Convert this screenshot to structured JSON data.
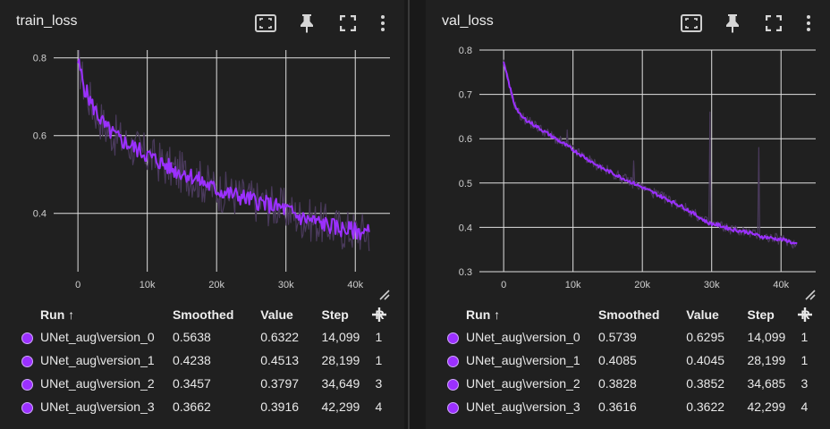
{
  "accent_color": "#9b30ff",
  "toolbar_icons": [
    "fit-domain-icon",
    "pin-icon",
    "fullscreen-icon",
    "more-vert-icon"
  ],
  "table_headers": {
    "run": "Run ↑",
    "smoothed": "Smoothed",
    "value": "Value",
    "step": "Step",
    "relative": "R"
  },
  "panels": [
    {
      "title": "train_loss",
      "rows": [
        {
          "run": "UNet_aug\\version_0",
          "smoothed": "0.5638",
          "value": "0.6322",
          "step": "14,099",
          "relative": "1"
        },
        {
          "run": "UNet_aug\\version_1",
          "smoothed": "0.4238",
          "value": "0.4513",
          "step": "28,199",
          "relative": "1"
        },
        {
          "run": "UNet_aug\\version_2",
          "smoothed": "0.3457",
          "value": "0.3797",
          "step": "34,649",
          "relative": "3"
        },
        {
          "run": "UNet_aug\\version_3",
          "smoothed": "0.3662",
          "value": "0.3916",
          "step": "42,299",
          "relative": "4"
        }
      ]
    },
    {
      "title": "val_loss",
      "rows": [
        {
          "run": "UNet_aug\\version_0",
          "smoothed": "0.5739",
          "value": "0.6295",
          "step": "14,099",
          "relative": "1"
        },
        {
          "run": "UNet_aug\\version_1",
          "smoothed": "0.4085",
          "value": "0.4045",
          "step": "28,199",
          "relative": "1"
        },
        {
          "run": "UNet_aug\\version_2",
          "smoothed": "0.3828",
          "value": "0.3852",
          "step": "34,685",
          "relative": "3"
        },
        {
          "run": "UNet_aug\\version_3",
          "smoothed": "0.3616",
          "value": "0.3622",
          "step": "42,299",
          "relative": "4"
        }
      ]
    }
  ],
  "chart_data": [
    {
      "type": "line",
      "title": "train_loss",
      "xlim": [
        -3500,
        45000
      ],
      "ylim": [
        0.25,
        0.82
      ],
      "x_ticks": [
        0,
        10000,
        20000,
        30000,
        40000
      ],
      "x_tick_labels": [
        "0",
        "10k",
        "20k",
        "30k",
        "40k"
      ],
      "y_ticks": [
        0.4,
        0.6,
        0.8
      ],
      "y_tick_labels": [
        "0.4",
        "0.6",
        "0.8"
      ],
      "grid": true,
      "raw_color": "#4a3a5c",
      "smoothed_color": "#9b30ff",
      "series": [
        {
          "x": [
            0,
            1000,
            2000,
            3000,
            4000,
            6000,
            8000,
            10000,
            12000,
            14000,
            16000,
            18000,
            20000,
            22000,
            24000,
            26000,
            28000,
            30000,
            32000,
            34000,
            36000,
            38000,
            40000,
            42000
          ],
          "y": [
            0.79,
            0.72,
            0.68,
            0.65,
            0.62,
            0.59,
            0.57,
            0.55,
            0.53,
            0.51,
            0.5,
            0.48,
            0.46,
            0.45,
            0.44,
            0.43,
            0.42,
            0.41,
            0.39,
            0.38,
            0.37,
            0.36,
            0.355,
            0.35
          ]
        }
      ]
    },
    {
      "type": "line",
      "title": "val_loss",
      "xlim": [
        -3500,
        45000
      ],
      "ylim": [
        0.3,
        0.8
      ],
      "x_ticks": [
        0,
        10000,
        20000,
        30000,
        40000
      ],
      "x_tick_labels": [
        "0",
        "10k",
        "20k",
        "30k",
        "40k"
      ],
      "y_ticks": [
        0.3,
        0.4,
        0.5,
        0.6,
        0.7,
        0.8
      ],
      "y_tick_labels": [
        "0.3",
        "0.4",
        "0.5",
        "0.6",
        "0.7",
        "0.8"
      ],
      "grid": true,
      "raw_color": "#4a3a5c",
      "smoothed_color": "#9b30ff",
      "series": [
        {
          "x": [
            0,
            500,
            1500,
            2500,
            4000,
            6000,
            8000,
            10000,
            12000,
            14000,
            16000,
            18000,
            20000,
            22000,
            24000,
            26000,
            28000,
            29500,
            31000,
            33000,
            35000,
            37000,
            39000,
            41000,
            42300
          ],
          "y": [
            0.77,
            0.74,
            0.68,
            0.65,
            0.635,
            0.615,
            0.595,
            0.575,
            0.555,
            0.535,
            0.52,
            0.505,
            0.49,
            0.475,
            0.46,
            0.445,
            0.425,
            0.41,
            0.405,
            0.395,
            0.39,
            0.38,
            0.375,
            0.37,
            0.36
          ]
        }
      ],
      "raw_spikes": [
        {
          "x": 29700,
          "y": 0.66
        },
        {
          "x": 36800,
          "y": 0.58
        },
        {
          "x": 9200,
          "y": 0.62
        },
        {
          "x": 18800,
          "y": 0.55
        }
      ]
    }
  ]
}
